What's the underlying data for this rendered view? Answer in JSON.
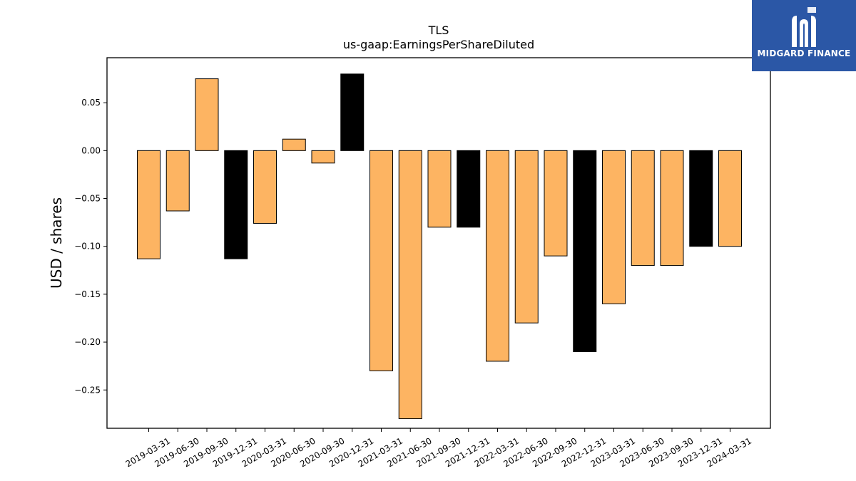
{
  "logo": {
    "text": "MIDGARD FINANCE",
    "bg_color": "#2b57a6"
  },
  "chart_data": {
    "type": "bar",
    "title": "TLS",
    "subtitle": "us-gaap:EarningsPerShareDiluted",
    "xlabel": "",
    "ylabel": "USD / shares",
    "ylim": [
      -0.29,
      0.097
    ],
    "yticks": [
      0.05,
      0.0,
      -0.05,
      -0.1,
      -0.15,
      -0.2,
      -0.25
    ],
    "ytick_labels": [
      "0.05",
      "0.00",
      "−0.05",
      "−0.10",
      "−0.15",
      "−0.20",
      "−0.25"
    ],
    "grid": false,
    "categories": [
      "2019-03-31",
      "2019-06-30",
      "2019-09-30",
      "2019-12-31",
      "2020-03-31",
      "2020-06-30",
      "2020-09-30",
      "2020-12-31",
      "2021-03-31",
      "2021-06-30",
      "2021-09-30",
      "2021-12-31",
      "2022-03-31",
      "2022-06-30",
      "2022-09-30",
      "2022-12-31",
      "2023-03-31",
      "2023-06-30",
      "2023-09-30",
      "2023-12-31",
      "2024-03-31"
    ],
    "values": [
      -0.113,
      -0.063,
      0.075,
      -0.113,
      -0.076,
      0.012,
      -0.013,
      0.08,
      -0.23,
      -0.28,
      -0.08,
      -0.08,
      -0.22,
      -0.18,
      -0.11,
      -0.21,
      -0.16,
      -0.12,
      -0.12,
      -0.1,
      -0.1
    ],
    "bar_colors": [
      "#fdb462",
      "#fdb462",
      "#fdb462",
      "#000000",
      "#fdb462",
      "#fdb462",
      "#fdb462",
      "#000000",
      "#fdb462",
      "#fdb462",
      "#fdb462",
      "#000000",
      "#fdb462",
      "#fdb462",
      "#fdb462",
      "#000000",
      "#fdb462",
      "#fdb462",
      "#fdb462",
      "#000000",
      "#fdb462"
    ]
  }
}
